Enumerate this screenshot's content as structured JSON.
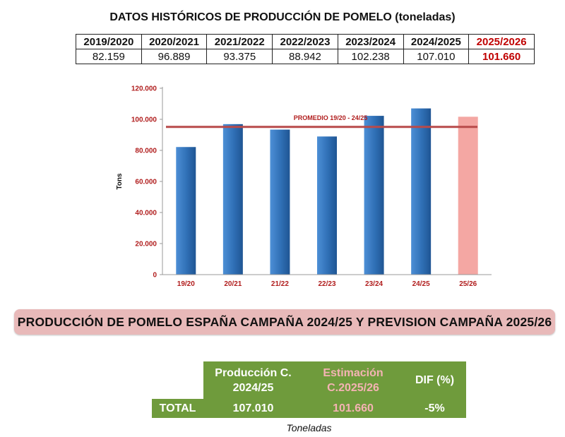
{
  "header": {
    "title": "DATOS HISTÓRICOS DE PRODUCCIÓN DE POMELO (toneladas)"
  },
  "history_table": {
    "columns": [
      "2019/2020",
      "2020/2021",
      "2021/2022",
      "2022/2023",
      "2023/2024",
      "2024/2025",
      "2025/2026"
    ],
    "values": [
      "82.159",
      "96.889",
      "93.375",
      "88.942",
      "102.238",
      "107.010",
      "101.660"
    ]
  },
  "chart_data": {
    "type": "bar",
    "categories": [
      "19/20",
      "20/21",
      "21/22",
      "22/23",
      "23/24",
      "24/25",
      "25/26"
    ],
    "values": [
      82159,
      96889,
      93375,
      88942,
      102238,
      107010,
      101660
    ],
    "bar_colors": [
      "#2f6fb5",
      "#2f6fb5",
      "#2f6fb5",
      "#2f6fb5",
      "#2f6fb5",
      "#2f6fb5",
      "#f4a7a3"
    ],
    "ylabel": "Tons",
    "ylim": [
      0,
      120000
    ],
    "yticks": [
      0,
      20000,
      40000,
      60000,
      80000,
      100000,
      120000
    ],
    "ytick_labels": [
      "0",
      "20.000",
      "40.000",
      "60.000",
      "80.000",
      "100.000",
      "120.000"
    ],
    "reference_line": {
      "label": "PROMEDIO 19/20 - 24/25",
      "value": 95102,
      "color": "#b84a4a"
    },
    "grid": false,
    "tick_label_color": "#b01c1c"
  },
  "banner": {
    "text": "PRODUCCIÓN DE POMELO ESPAÑA CAMPAÑA 2024/25 Y PREVISION CAMPAÑA 2025/26"
  },
  "summary": {
    "col1_line1": "Producción C.",
    "col1_line2": "2024/25",
    "col2_line1": "Estimación",
    "col2_line2": "C.2025/26",
    "col3": "DIF (%)",
    "row_label": "TOTAL",
    "val1": "107.010",
    "val2": "101.660",
    "val3": "-5%",
    "units": "Toneladas",
    "accent_green": "#6f9b3c",
    "accent_pink": "#f4b3b3"
  }
}
